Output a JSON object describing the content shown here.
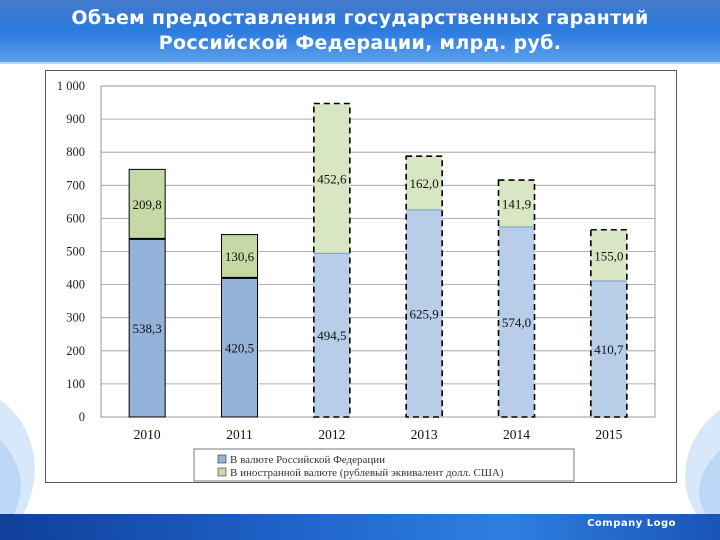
{
  "title": {
    "line1": "Объем предоставления государственных гарантий",
    "line2": "Российской Федерации, млрд. руб."
  },
  "footer": {
    "logo_text": "Company Logo"
  },
  "colors": {
    "header": "#2f7ee0",
    "footer": "#1f63c9",
    "rub_solid": "#94b3d9",
    "fx_solid": "#c4d9a6",
    "rub_forecast": "#b8cde8",
    "fx_forecast": "#d9e6c4"
  },
  "chart_data": {
    "type": "bar",
    "stacked": true,
    "categories": [
      "2010",
      "2011",
      "2012",
      "2013",
      "2014",
      "2015"
    ],
    "series": [
      {
        "name": "В валюте Российской Федерации",
        "values": [
          538.3,
          420.5,
          494.5,
          625.9,
          574.0,
          410.7
        ],
        "labels": [
          "538,3",
          "420,5",
          "494,5",
          "625,9",
          "574,0",
          "410,7"
        ]
      },
      {
        "name": "В иностранной валюте (рублевый эквивалент долл. США)",
        "values": [
          209.8,
          130.6,
          452.6,
          162.0,
          141.9,
          155.0
        ],
        "labels": [
          "209,8",
          "130,6",
          "452,6",
          "162,0",
          "141,9",
          "155,0"
        ]
      }
    ],
    "forecast_categories": [
      "2012",
      "2013",
      "2014",
      "2015"
    ],
    "ylim": [
      0,
      1000
    ],
    "yticks": [
      0,
      100,
      200,
      300,
      400,
      500,
      600,
      700,
      800,
      900,
      1000
    ],
    "ytick_labels": [
      "0",
      "100",
      "200",
      "300",
      "400",
      "500",
      "600",
      "700",
      "800",
      "900",
      "1 000"
    ],
    "grid": true,
    "legend_position": "bottom",
    "title": "",
    "xlabel": "",
    "ylabel": ""
  }
}
